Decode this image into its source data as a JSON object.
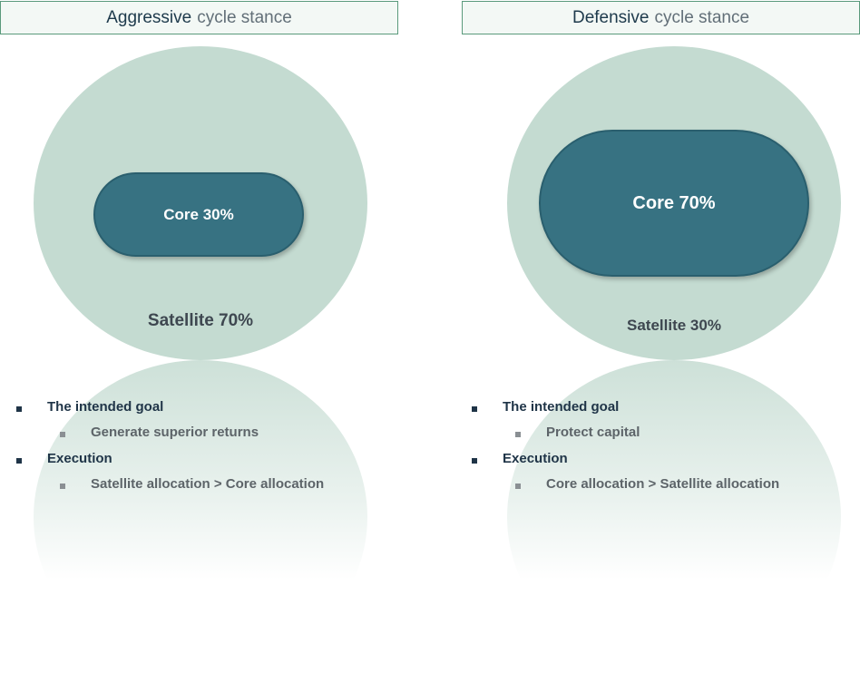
{
  "colors": {
    "outer_circle": "#c4dbd1",
    "core_fill": "#377282",
    "header_border": "#5a9a7c",
    "heading_text": "#1e3a4c"
  },
  "panels": [
    {
      "title_strong": "Aggressive",
      "title_soft": "cycle stance",
      "core_label": "Core 30%",
      "satellite_label": "Satellite 70%",
      "goal_heading": "The intended goal",
      "goal_item": "Generate superior returns",
      "execution_heading": "Execution",
      "execution_item": "Satellite allocation > Core allocation"
    },
    {
      "title_strong": "Defensive",
      "title_soft": "cycle stance",
      "core_label": "Core 70%",
      "satellite_label": "Satellite 30%",
      "goal_heading": "The intended goal",
      "goal_item": "Protect capital",
      "execution_heading": "Execution",
      "execution_item": "Core allocation > Satellite allocation"
    }
  ]
}
